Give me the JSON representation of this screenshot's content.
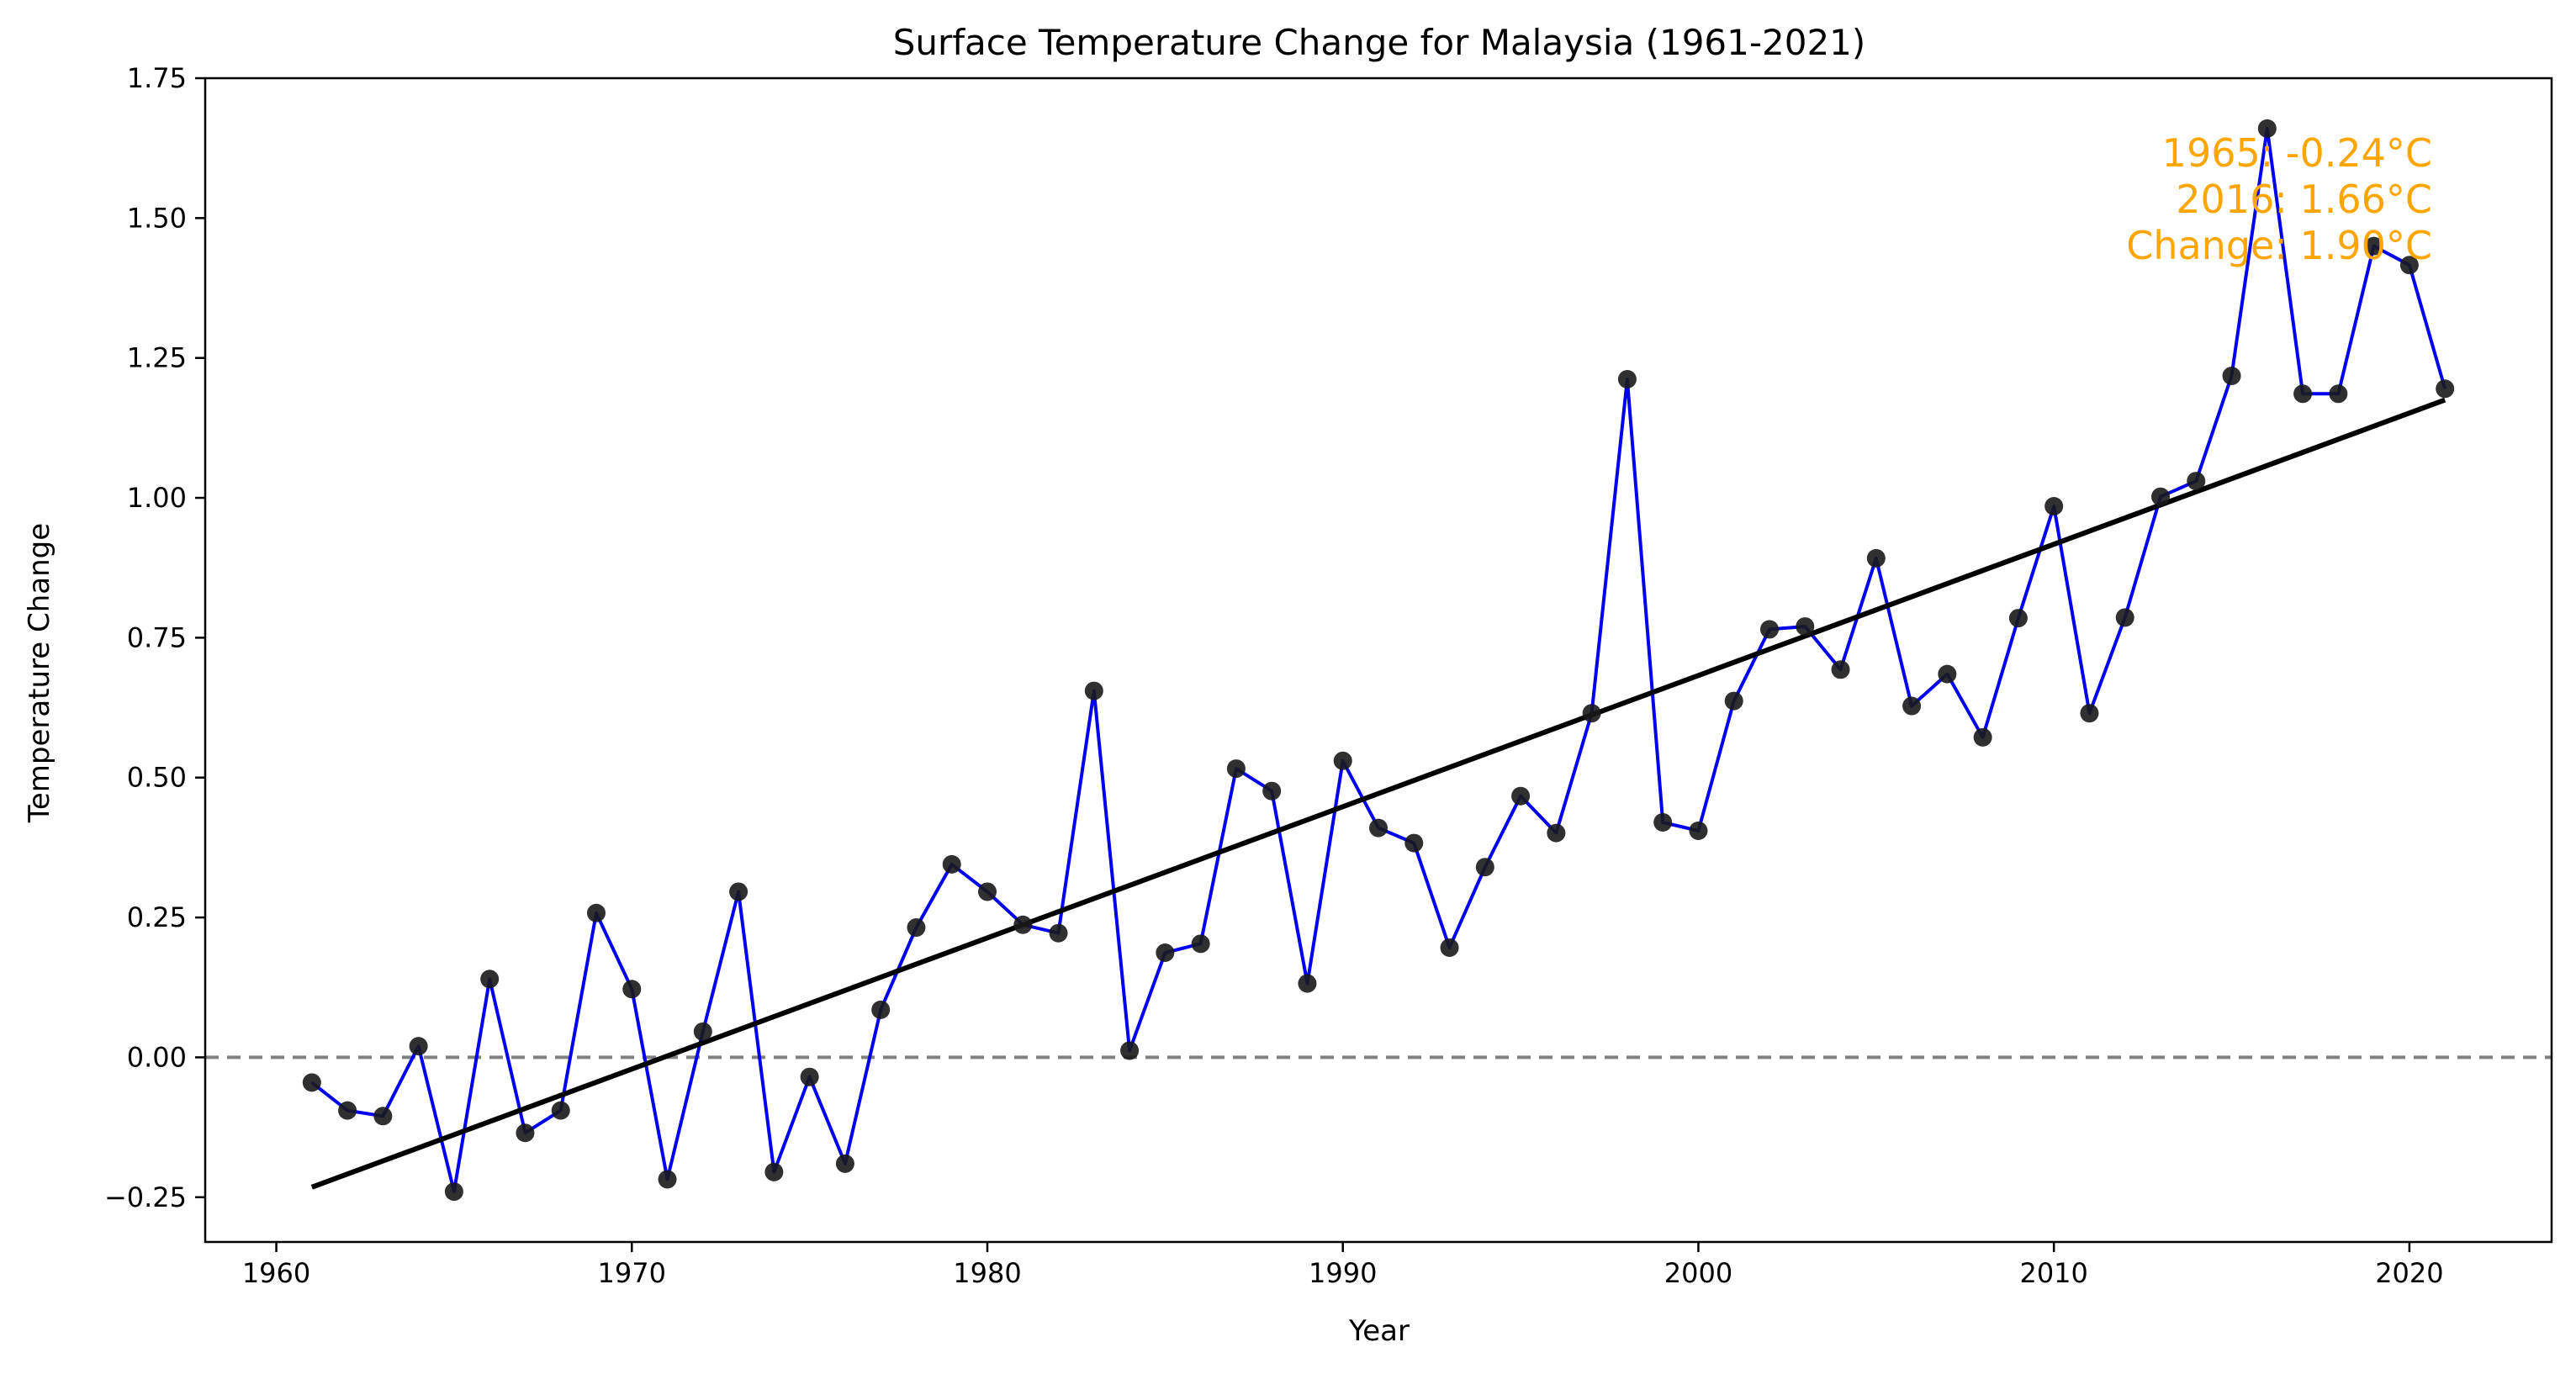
{
  "chart_data": {
    "type": "line",
    "title": "Surface Temperature Change for Malaysia (1961-2021)",
    "xlabel": "Year",
    "ylabel": "Temperature Change",
    "xlim": [
      1958,
      2024
    ],
    "ylim": [
      -0.33,
      1.75
    ],
    "xticks": [
      1960,
      1970,
      1980,
      1990,
      2000,
      2010,
      2020
    ],
    "xtick_labels": [
      "1960",
      "1970",
      "1980",
      "1990",
      "2000",
      "2010",
      "2020"
    ],
    "yticks": [
      -0.25,
      0,
      0.25,
      0.5,
      0.75,
      1.0,
      1.25,
      1.5,
      1.75
    ],
    "ytick_labels": [
      "−0.25",
      "0.00",
      "0.25",
      "0.50",
      "0.75",
      "1.00",
      "1.25",
      "1.50",
      "1.75"
    ],
    "grid": false,
    "reference_line": {
      "y": 0,
      "style": "dashed",
      "color": "#808080"
    },
    "colors": {
      "line": "#0000ee",
      "marker": "#1a1a1a",
      "trend": "#000000",
      "annotation": "#ffa500"
    },
    "series": [
      {
        "x": [
          1961,
          1962,
          1963,
          1964,
          1965,
          1966,
          1967,
          1968,
          1969,
          1970,
          1971,
          1972,
          1973,
          1974,
          1975,
          1976,
          1977,
          1978,
          1979,
          1980,
          1981,
          1982,
          1983,
          1984,
          1985,
          1986,
          1987,
          1988,
          1989,
          1990,
          1991,
          1992,
          1993,
          1994,
          1995,
          1996,
          1997,
          1998,
          1999,
          2000,
          2001,
          2002,
          2003,
          2004,
          2005,
          2006,
          2007,
          2008,
          2009,
          2010,
          2011,
          2012,
          2013,
          2014,
          2015,
          2016,
          2017,
          2018,
          2019,
          2020,
          2021
        ],
        "values": [
          -0.045,
          -0.095,
          -0.105,
          0.02,
          -0.24,
          0.14,
          -0.135,
          -0.095,
          0.258,
          0.122,
          -0.218,
          0.046,
          0.296,
          -0.205,
          -0.035,
          -0.19,
          0.085,
          0.232,
          0.345,
          0.296,
          0.237,
          0.222,
          0.655,
          0.012,
          0.187,
          0.203,
          0.516,
          0.476,
          0.132,
          0.53,
          0.41,
          0.383,
          0.196,
          0.34,
          0.467,
          0.401,
          0.615,
          1.212,
          0.42,
          0.405,
          0.637,
          0.765,
          0.77,
          0.693,
          0.892,
          0.628,
          0.685,
          0.572,
          0.785,
          0.985,
          0.615,
          0.786,
          1.002,
          1.03,
          1.218,
          1.66,
          1.186,
          1.186,
          1.45,
          1.416,
          1.195
        ]
      }
    ],
    "trend_line": {
      "x": [
        1961,
        2021
      ],
      "y": [
        -0.232,
        1.175
      ]
    },
    "annotation": {
      "lines": [
        "1965: -0.24°C",
        "2016: 1.66°C",
        "Change: 1.90°C"
      ]
    }
  }
}
